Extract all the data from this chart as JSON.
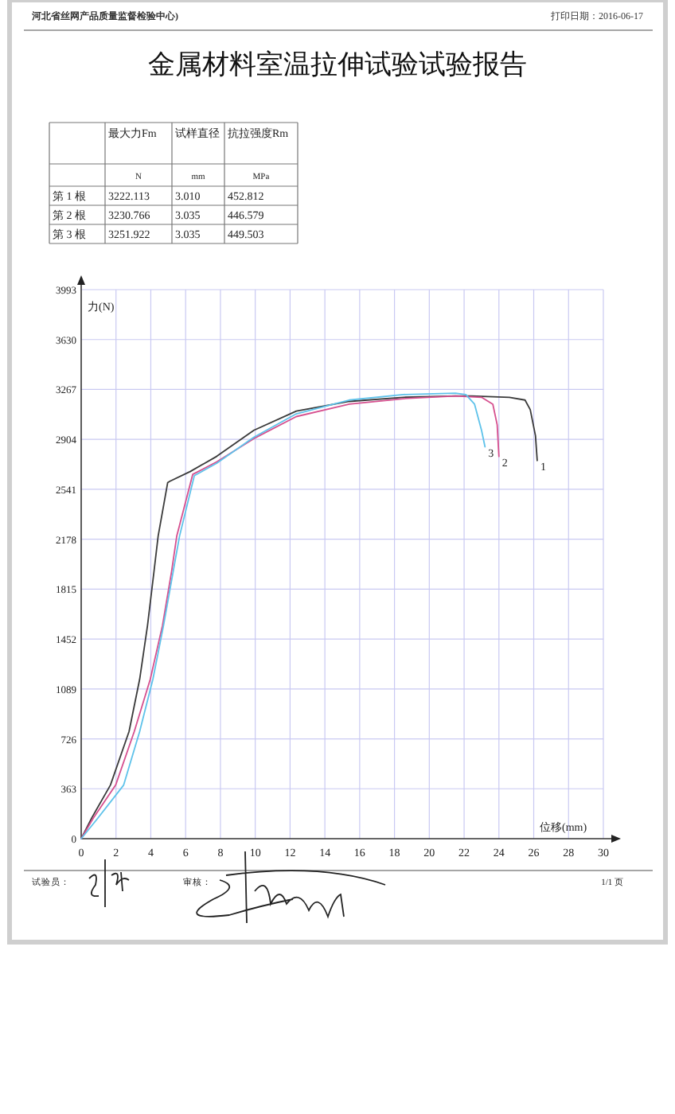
{
  "chart_data": [
    {
      "type": "other",
      "title": "金属材料室温拉伸试验试验报告",
      "subtitle": "河北省丝网产品质量监督检验中心)",
      "annotations": [
        "打印日期：2016-06-17",
        "最大力Fm",
        "试样直径",
        "抗拉强度Rm",
        "N",
        "mm",
        "MPa",
        "第 1 根",
        "3222.113",
        "3.010",
        "452.812",
        "第 2 根",
        "3230.766",
        "3.035",
        "446.579",
        "第 3 根",
        "3251.922",
        "3.035",
        "449.503"
      ]
    },
    {
      "type": "line",
      "xlabel": "位移(mm)",
      "ylabel": "力(N)",
      "xlim": [
        0,
        30
      ],
      "ylim": [
        0,
        3993
      ],
      "xticks": [
        0,
        2,
        4,
        6,
        8,
        10,
        12,
        14,
        16,
        18,
        20,
        22,
        24,
        26,
        28,
        30
      ],
      "yticks": [
        0,
        363,
        726,
        1089,
        1452,
        1815,
        2178,
        2541,
        2904,
        3267,
        3630,
        3993
      ],
      "grid": true,
      "series": [
        {
          "name": "1",
          "color": "#3a3a3a",
          "x": [
            0,
            0.6,
            1.68,
            2.75,
            3.36,
            3.81,
            4.18,
            4.42,
            4.97,
            5.1,
            6.26,
            7.78,
            9.92,
            12.36,
            15.4,
            18.5,
            21.5,
            22.4,
            24.6,
            25.5,
            25.8,
            26.1,
            26.2
          ],
          "values": [
            0,
            150,
            390,
            780,
            1160,
            1550,
            1940,
            2200,
            2590,
            2600,
            2670,
            2780,
            2970,
            3110,
            3180,
            3210,
            3220,
            3220,
            3210,
            3190,
            3120,
            2930,
            2750
          ]
        },
        {
          "name": "2",
          "color": "#d6508f",
          "x": [
            0,
            0.7,
            1.98,
            3.05,
            3.97,
            4.67,
            5.19,
            5.49,
            6.41,
            7.78,
            9.92,
            12.36,
            15.4,
            18.5,
            21.5,
            23.0,
            23.65,
            23.9,
            24.0
          ],
          "values": [
            0,
            150,
            390,
            780,
            1160,
            1550,
            1940,
            2200,
            2650,
            2740,
            2910,
            3070,
            3160,
            3200,
            3220,
            3210,
            3160,
            3010,
            2780
          ]
        },
        {
          "name": "3",
          "color": "#5ec2ea",
          "x": [
            0,
            0.9,
            2.44,
            3.36,
            4.12,
            4.73,
            5.28,
            5.65,
            6.5,
            7.78,
            9.92,
            12.36,
            15.4,
            18.5,
            21.5,
            22.1,
            22.6,
            23.0,
            23.2
          ],
          "values": [
            0,
            140,
            390,
            780,
            1160,
            1550,
            1940,
            2200,
            2640,
            2730,
            2920,
            3090,
            3190,
            3230,
            3240,
            3230,
            3160,
            2970,
            2850
          ]
        }
      ],
      "annotations": [
        "试验员：",
        "审核：",
        "1/1 页"
      ]
    }
  ]
}
